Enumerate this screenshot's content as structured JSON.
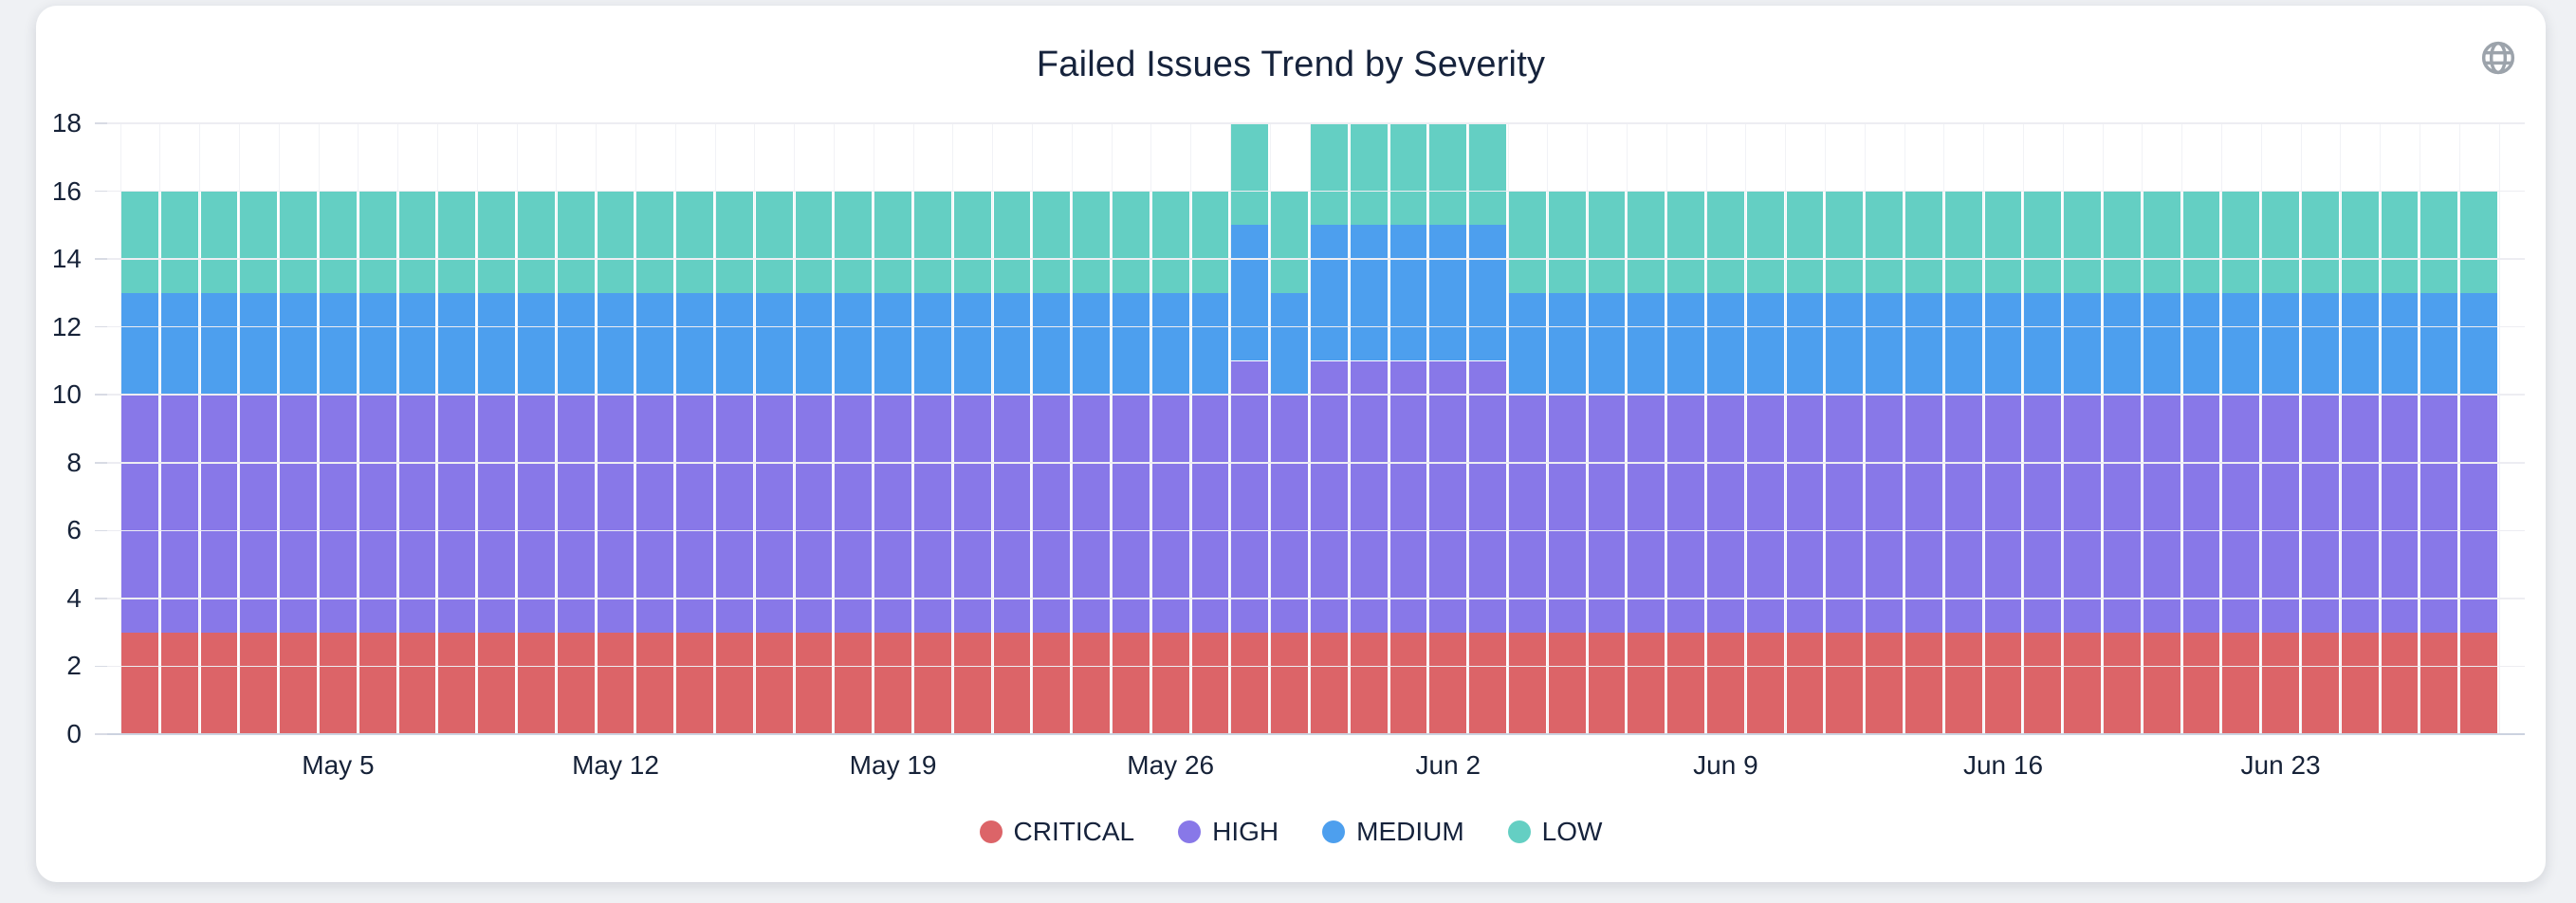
{
  "page": {
    "globe_icon": "globe",
    "globe_icon_color": "#9ca3ab"
  },
  "chart_data": {
    "type": "bar",
    "stacked": true,
    "title": "Failed Issues Trend by Severity",
    "xlabel": "",
    "ylabel": "",
    "ylim": [
      0,
      18
    ],
    "y_ticks": [
      0,
      2,
      4,
      6,
      8,
      10,
      12,
      14,
      16,
      18
    ],
    "grid": true,
    "legend_position": "bottom",
    "x": [
      "Apr 30",
      "May 1",
      "May 2",
      "May 3",
      "May 4",
      "May 5",
      "May 6",
      "May 7",
      "May 8",
      "May 9",
      "May 10",
      "May 11",
      "May 12",
      "May 13",
      "May 14",
      "May 15",
      "May 16",
      "May 17",
      "May 18",
      "May 19",
      "May 20",
      "May 21",
      "May 22",
      "May 23",
      "May 24",
      "May 25",
      "May 26",
      "May 27",
      "May 28",
      "May 29",
      "May 30",
      "May 31",
      "Jun 1",
      "Jun 2",
      "Jun 3",
      "Jun 4",
      "Jun 5",
      "Jun 6",
      "Jun 7",
      "Jun 8",
      "Jun 9",
      "Jun 10",
      "Jun 11",
      "Jun 12",
      "Jun 13",
      "Jun 14",
      "Jun 15",
      "Jun 16",
      "Jun 17",
      "Jun 18",
      "Jun 19",
      "Jun 20",
      "Jun 21",
      "Jun 22",
      "Jun 23",
      "Jun 24",
      "Jun 25",
      "Jun 26",
      "Jun 27",
      "Jun 28"
    ],
    "x_tick_labels": [
      "May 5",
      "May 12",
      "May 19",
      "May 26",
      "Jun 2",
      "Jun 9",
      "Jun 16",
      "Jun 23"
    ],
    "series": [
      {
        "name": "CRITICAL",
        "color": "#dc6468",
        "values": [
          3,
          3,
          3,
          3,
          3,
          3,
          3,
          3,
          3,
          3,
          3,
          3,
          3,
          3,
          3,
          3,
          3,
          3,
          3,
          3,
          3,
          3,
          3,
          3,
          3,
          3,
          3,
          3,
          3,
          3,
          3,
          3,
          3,
          3,
          3,
          3,
          3,
          3,
          3,
          3,
          3,
          3,
          3,
          3,
          3,
          3,
          3,
          3,
          3,
          3,
          3,
          3,
          3,
          3,
          3,
          3,
          3,
          3,
          3,
          3
        ]
      },
      {
        "name": "HIGH",
        "color": "#8878e8",
        "values": [
          7,
          7,
          7,
          7,
          7,
          7,
          7,
          7,
          7,
          7,
          7,
          7,
          7,
          7,
          7,
          7,
          7,
          7,
          7,
          7,
          7,
          7,
          7,
          7,
          7,
          7,
          7,
          7,
          8,
          7,
          8,
          8,
          8,
          8,
          8,
          7,
          7,
          7,
          7,
          7,
          7,
          7,
          7,
          7,
          7,
          7,
          7,
          7,
          7,
          7,
          7,
          7,
          7,
          7,
          7,
          7,
          7,
          7,
          7,
          7
        ]
      },
      {
        "name": "MEDIUM",
        "color": "#4d9fee",
        "values": [
          3,
          3,
          3,
          3,
          3,
          3,
          3,
          3,
          3,
          3,
          3,
          3,
          3,
          3,
          3,
          3,
          3,
          3,
          3,
          3,
          3,
          3,
          3,
          3,
          3,
          3,
          3,
          3,
          4,
          3,
          4,
          4,
          4,
          4,
          4,
          3,
          3,
          3,
          3,
          3,
          3,
          3,
          3,
          3,
          3,
          3,
          3,
          3,
          3,
          3,
          3,
          3,
          3,
          3,
          3,
          3,
          3,
          3,
          3,
          3
        ]
      },
      {
        "name": "LOW",
        "color": "#64cfc3",
        "values": [
          3,
          3,
          3,
          3,
          3,
          3,
          3,
          3,
          3,
          3,
          3,
          3,
          3,
          3,
          3,
          3,
          3,
          3,
          3,
          3,
          3,
          3,
          3,
          3,
          3,
          3,
          3,
          3,
          3,
          3,
          3,
          3,
          3,
          3,
          3,
          3,
          3,
          3,
          3,
          3,
          3,
          3,
          3,
          3,
          3,
          3,
          3,
          3,
          3,
          3,
          3,
          3,
          3,
          3,
          3,
          3,
          3,
          3,
          3,
          3
        ]
      }
    ]
  }
}
